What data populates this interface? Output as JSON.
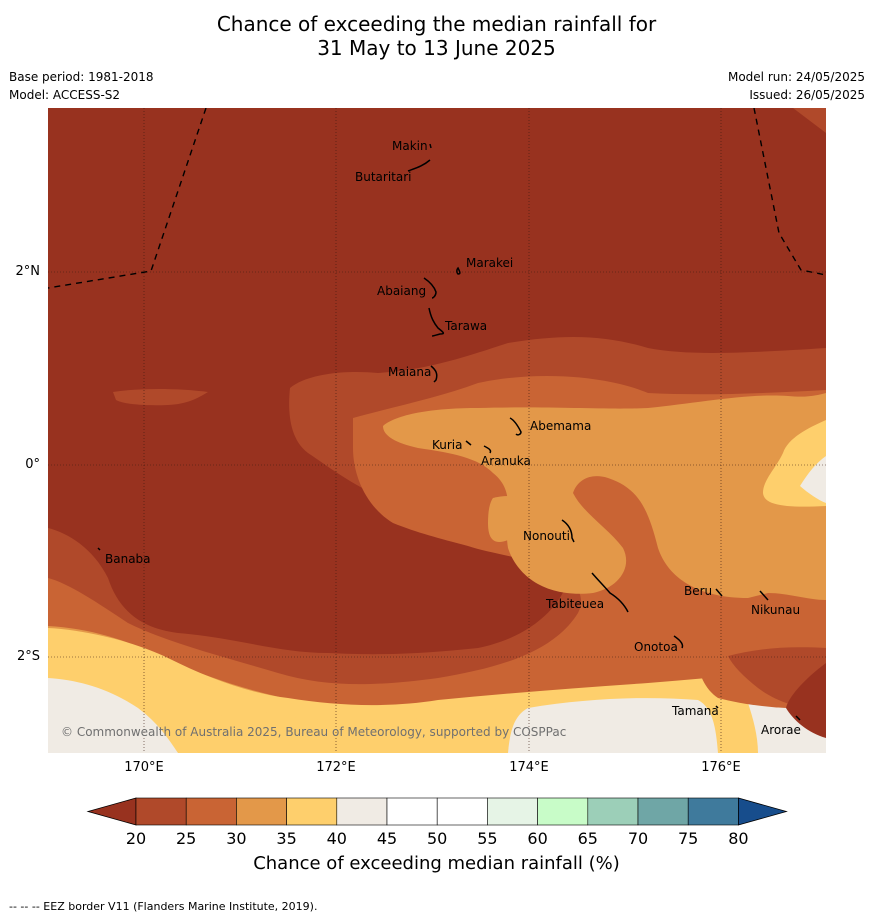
{
  "title_line1": "Chance of exceeding the median rainfall for",
  "title_line2": "31 May to 13 June 2025",
  "meta": {
    "base_period": "Base period: 1981-2018",
    "model": "Model: ACCESS-S2",
    "model_run": "Model run: 24/05/2025",
    "issued": "Issued: 26/05/2025"
  },
  "lat_labels": [
    "2°N",
    "0°",
    "2°S"
  ],
  "lon_labels": [
    "170°E",
    "172°E",
    "174°E",
    "176°E"
  ],
  "places": {
    "makin": "Makin",
    "butaritari": "Butaritari",
    "marakei": "Marakei",
    "abaiang": "Abaiang",
    "tarawa": "Tarawa",
    "maiana": "Maiana",
    "abemama": "Abemama",
    "kuria": "Kuria",
    "aranuka": "Aranuka",
    "banaba": "Banaba",
    "nonouti": "Nonouti",
    "beru": "Beru",
    "nikunau": "Nikunau",
    "tabiteuea": "Tabiteuea",
    "onotoa": "Onotoa",
    "tamana": "Tamana",
    "arorae": "Arorae"
  },
  "copyright": "© Commonwealth of Australia 2025, Bureau of Meteorology, supported by COSPPac",
  "colorbar": {
    "ticks": [
      "20",
      "25",
      "30",
      "35",
      "40",
      "45",
      "50",
      "55",
      "60",
      "65",
      "70",
      "75",
      "80"
    ],
    "colors": [
      "#98321f",
      "#b0492a",
      "#c96434",
      "#e39849",
      "#fecf6c",
      "#f0ebe4",
      "#ffffff",
      "#ffffff",
      "#e6f4e6",
      "#c8fcc8",
      "#9ccfb8",
      "#6fa6a6",
      "#3f7a9c",
      "#174d8c"
    ],
    "label": "Chance of exceeding median rainfall (%)"
  },
  "footnote": "--  --  -- EEZ border V11 (Flanders Marine Institute, 2019)."
}
